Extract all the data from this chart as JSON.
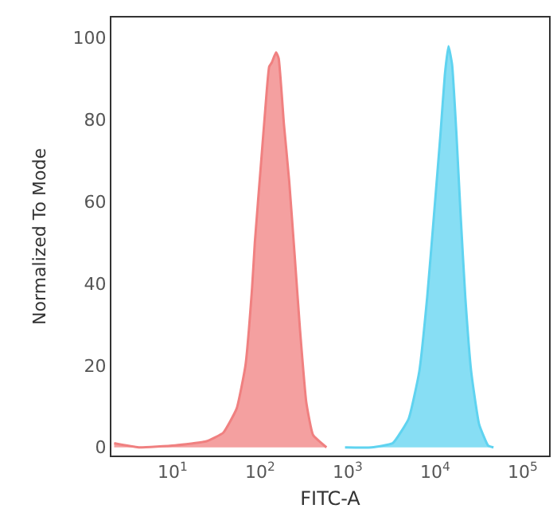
{
  "chart_data": {
    "type": "area",
    "xlabel": "FITC-A",
    "ylabel": "Normalized To Mode",
    "log": "x",
    "xlim": [
      2,
      200000
    ],
    "ylim": [
      -2,
      105
    ],
    "xticks": [
      {
        "value": 10,
        "label": "10$^{1}$"
      },
      {
        "value": 100,
        "label": "10$^{2}$"
      },
      {
        "value": 1000,
        "label": "10$^{3}$"
      },
      {
        "value": 10000,
        "label": "10$^{4}$"
      },
      {
        "value": 100000,
        "label": "10$^{5}$"
      }
    ],
    "yticks": [
      0,
      20,
      40,
      60,
      80,
      100
    ],
    "series": [
      {
        "color": "#f08080",
        "x": [
          2.15,
          4.1,
          10.7,
          24.5,
          38,
          54,
          68,
          81,
          87,
          103,
          115,
          127,
          136,
          152,
          163,
          187,
          215,
          248,
          285,
          337,
          403,
          573
        ],
        "values": [
          1,
          0,
          0.5,
          1.5,
          3.6,
          9.5,
          20,
          39,
          50,
          70,
          83,
          93,
          94,
          96.5,
          95,
          79,
          65,
          47,
          29,
          11,
          3,
          0
        ]
      },
      {
        "color": "#5fd3f0",
        "x": [
          933,
          1874,
          3270,
          4980,
          6580,
          8110,
          9720,
          11500,
          12900,
          14200,
          15600,
          17500,
          19500,
          22100,
          25800,
          31800,
          40400,
          46400
        ],
        "values": [
          0,
          0,
          1,
          7,
          18.5,
          36.7,
          57,
          76.5,
          91,
          98,
          93.5,
          76.5,
          57,
          36.7,
          18.5,
          5.6,
          0.4,
          0
        ]
      }
    ]
  }
}
